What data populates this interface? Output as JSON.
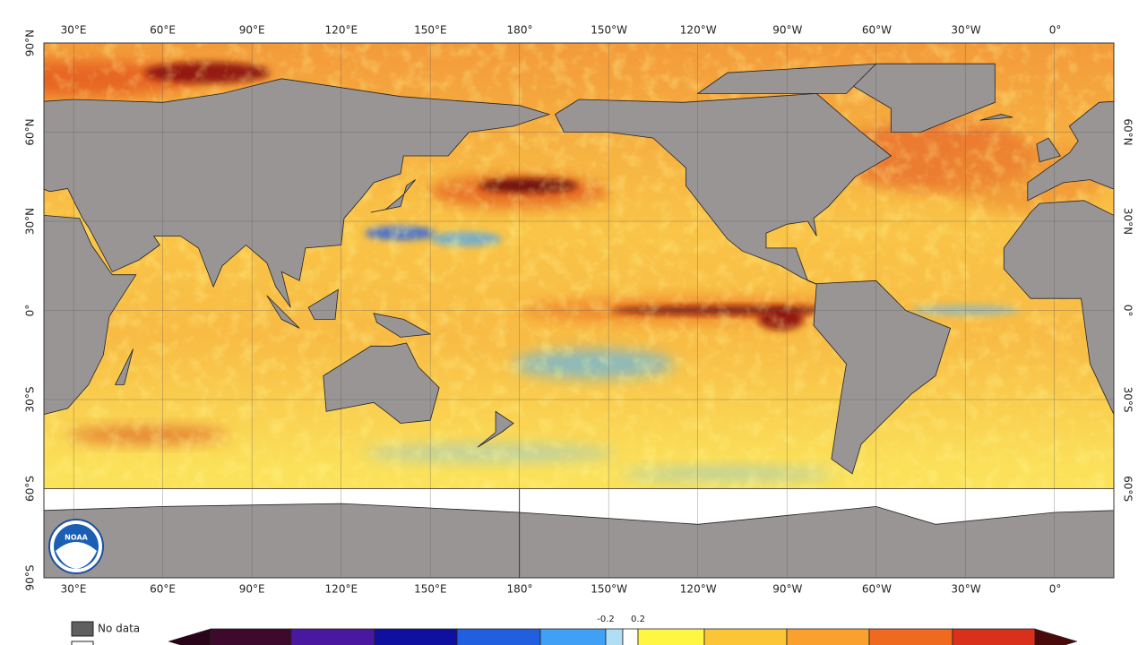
{
  "map": {
    "lon_labels": [
      "30°E",
      "60°E",
      "90°E",
      "120°E",
      "150°E",
      "180°",
      "150°W",
      "120°W",
      "90°W",
      "60°W",
      "30°W",
      "0°"
    ],
    "lat_labels_left": [
      "90°N",
      "60°N",
      "30°N",
      "0°",
      "30°S",
      "60°S",
      "90°S"
    ],
    "lat_labels_right": [
      "60°N",
      "30°N",
      "0°",
      "30°S",
      "60°S"
    ],
    "logo": "NOAA"
  },
  "legend": {
    "no_data": "No data",
    "colorbar_labels": [
      "-0.2",
      "0.2"
    ]
  }
}
